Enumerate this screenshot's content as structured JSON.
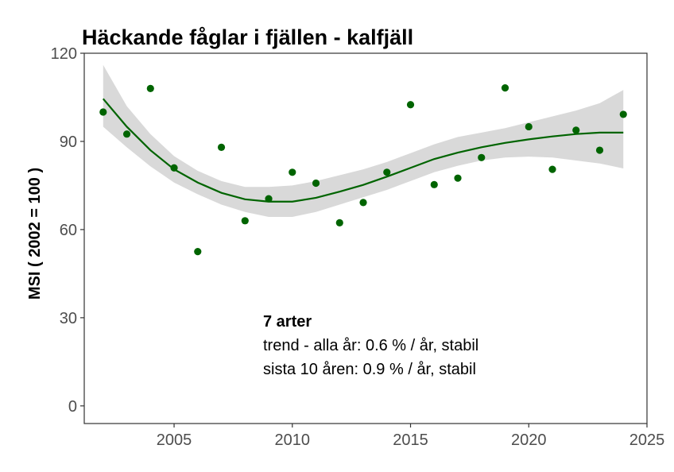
{
  "chart_data": {
    "type": "scatter",
    "title": "Häckande fåglar i fjällen - kalfjäll",
    "xlabel": "",
    "ylabel": "MSI ( 2002 = 100 )",
    "xlim": [
      2001.2,
      2025.0
    ],
    "ylim": [
      -6,
      120
    ],
    "xticks": [
      2005,
      2010,
      2015,
      2020,
      2025
    ],
    "yticks": [
      0,
      30,
      60,
      90,
      120
    ],
    "grid": false,
    "colors": {
      "points": "#006400",
      "trend": "#006400",
      "ribbon": "#d9d9d9"
    },
    "series": [
      {
        "kind": "points",
        "x": [
          2002,
          2003,
          2004,
          2005,
          2006,
          2007,
          2008,
          2009,
          2010,
          2011,
          2012,
          2013,
          2014,
          2015,
          2016,
          2017,
          2018,
          2019,
          2020,
          2021,
          2022,
          2023,
          2024
        ],
        "y": [
          100.0,
          92.5,
          108.0,
          81.0,
          52.5,
          88.0,
          63.0,
          70.5,
          79.5,
          75.8,
          62.3,
          69.2,
          79.5,
          102.5,
          75.3,
          77.5,
          84.5,
          108.2,
          95.0,
          80.5,
          93.8,
          87.0,
          99.2
        ]
      },
      {
        "kind": "smooth",
        "x": [
          2002,
          2003,
          2004,
          2005,
          2006,
          2007,
          2008,
          2009,
          2010,
          2011,
          2012,
          2013,
          2014,
          2015,
          2016,
          2017,
          2018,
          2019,
          2020,
          2021,
          2022,
          2023,
          2024
        ],
        "y": [
          104.5,
          95.0,
          87.0,
          80.5,
          76.0,
          72.5,
          70.3,
          69.5,
          69.5,
          70.8,
          72.9,
          75.2,
          78.0,
          81.0,
          84.0,
          86.2,
          88.0,
          89.5,
          90.7,
          91.7,
          92.5,
          93.0,
          93.0
        ],
        "lower": [
          95.0,
          88.0,
          81.5,
          76.0,
          72.0,
          68.5,
          66.0,
          64.3,
          64.3,
          66.0,
          68.5,
          71.0,
          73.5,
          76.5,
          79.5,
          81.7,
          83.5,
          84.5,
          84.8,
          84.5,
          83.5,
          82.5,
          80.8
        ],
        "upper": [
          116.0,
          102.0,
          92.5,
          85.0,
          80.0,
          76.5,
          74.5,
          74.5,
          75.0,
          76.5,
          78.5,
          80.5,
          83.0,
          86.0,
          89.0,
          91.5,
          93.0,
          94.5,
          96.5,
          98.5,
          100.5,
          103.0,
          107.5
        ]
      }
    ],
    "annotation": {
      "heading": "7 arter",
      "lines": [
        "trend - alla år: 0.6 % / år, stabil",
        "sista 10 åren: 0.9 % / år, stabil"
      ]
    }
  }
}
